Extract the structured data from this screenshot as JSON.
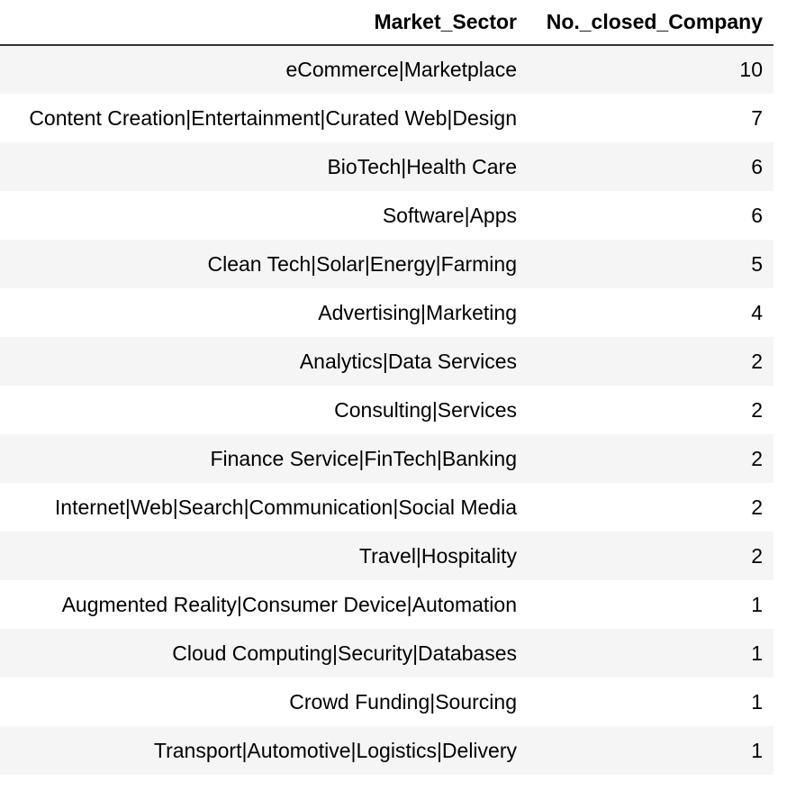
{
  "table": {
    "headers": [
      "Market_Sector",
      "No._closed_Company"
    ],
    "rows": [
      [
        "eCommerce|Marketplace",
        "10"
      ],
      [
        "Content Creation|Entertainment|Curated Web|Design",
        "7"
      ],
      [
        "BioTech|Health Care",
        "6"
      ],
      [
        "Software|Apps",
        "6"
      ],
      [
        "Clean Tech|Solar|Energy|Farming",
        "5"
      ],
      [
        "Advertising|Marketing",
        "4"
      ],
      [
        "Analytics|Data Services",
        "2"
      ],
      [
        "Consulting|Services",
        "2"
      ],
      [
        "Finance Service|FinTech|Banking",
        "2"
      ],
      [
        "Internet|Web|Search|Communication|Social Media",
        "2"
      ],
      [
        "Travel|Hospitality",
        "2"
      ],
      [
        "Augmented Reality|Consumer Device|Automation",
        "1"
      ],
      [
        "Cloud Computing|Security|Databases",
        "1"
      ],
      [
        "Crowd Funding|Sourcing",
        "1"
      ],
      [
        "Transport|Automotive|Logistics|Delivery",
        "1"
      ]
    ]
  }
}
